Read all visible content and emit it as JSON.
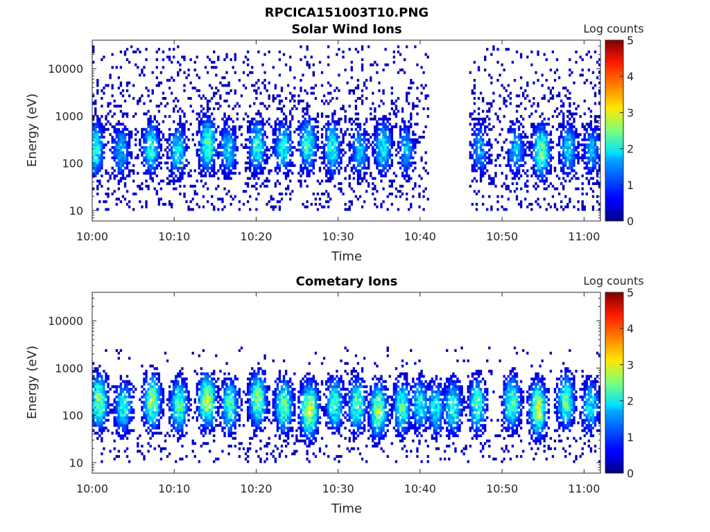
{
  "figure_title": "RPCICA151003T10.PNG",
  "chart_data": [
    {
      "type": "heatmap",
      "title": "Solar Wind Ions",
      "xlabel": "Time",
      "ylabel": "Energy (eV)",
      "x_ticks": [
        "10:00",
        "10:10",
        "10:20",
        "10:30",
        "10:40",
        "10:50",
        "11:00"
      ],
      "xlim": [
        "10:00",
        "11:02"
      ],
      "y_scale": "log",
      "y_ticks": [
        10,
        100,
        1000,
        10000
      ],
      "y_tick_labels": [
        "10",
        "100",
        "1000",
        "10000"
      ],
      "ylim": [
        6,
        40000
      ],
      "colorbar": {
        "label": "Log counts",
        "range": [
          0,
          5
        ],
        "ticks": [
          "0",
          "1",
          "2",
          "3",
          "4",
          "5"
        ],
        "colormap": "jet"
      },
      "data_gap": [
        "10:41",
        "10:46"
      ],
      "sweep_times_min": [
        0.3,
        3.5,
        7.2,
        10.4,
        14.1,
        16.6,
        20.1,
        23.3,
        26.3,
        29.3,
        32.6,
        35.5,
        38.3,
        47.3,
        51.7,
        54.8,
        58.1,
        61.0
      ],
      "sweep_peak_log_counts": [
        2.1,
        1.6,
        2.0,
        1.8,
        2.3,
        1.7,
        2.0,
        1.9,
        2.1,
        2.0,
        1.6,
        1.9,
        1.5,
        1.5,
        1.6,
        2.4,
        1.7,
        1.5
      ],
      "sweep_peak_energy_eV": [
        200,
        180,
        210,
        190,
        250,
        200,
        230,
        220,
        260,
        210,
        180,
        220,
        190,
        200,
        190,
        180,
        200,
        190
      ],
      "background_energy_range_eV": [
        10,
        30000
      ],
      "background_log_counts": 0.1
    },
    {
      "type": "heatmap",
      "title": "Cometary Ions",
      "xlabel": "Time",
      "ylabel": "Energy (eV)",
      "x_ticks": [
        "10:00",
        "10:10",
        "10:20",
        "10:30",
        "10:40",
        "10:50",
        "11:00"
      ],
      "xlim": [
        "10:00",
        "11:02"
      ],
      "y_scale": "log",
      "y_ticks": [
        10,
        100,
        1000,
        10000
      ],
      "y_tick_labels": [
        "10",
        "100",
        "1000",
        "10000"
      ],
      "ylim": [
        6,
        40000
      ],
      "colorbar": {
        "label": "Log counts",
        "range": [
          0,
          5
        ],
        "ticks": [
          "0",
          "1",
          "2",
          "3",
          "4",
          "5"
        ],
        "colormap": "jet"
      },
      "data_gap": null,
      "sweep_times_min": [
        0.8,
        3.8,
        7.3,
        10.6,
        14.0,
        16.8,
        20.2,
        23.4,
        26.5,
        29.6,
        32.3,
        34.9,
        37.8,
        40.0,
        41.9,
        44.0,
        47.0,
        51.2,
        54.4,
        57.8,
        60.8
      ],
      "sweep_peak_log_counts": [
        2.5,
        2.0,
        2.6,
        2.3,
        2.8,
        2.2,
        2.6,
        2.4,
        2.9,
        2.2,
        2.3,
        2.6,
        2.2,
        1.9,
        1.9,
        2.1,
        2.2,
        2.3,
        2.8,
        2.3,
        1.8
      ],
      "sweep_peak_energy_eV": [
        200,
        150,
        200,
        160,
        200,
        160,
        220,
        160,
        130,
        180,
        170,
        130,
        150,
        170,
        140,
        150,
        170,
        190,
        140,
        200,
        160
      ],
      "background_energy_range_eV": [
        10,
        3000
      ],
      "background_log_counts": 0.05
    }
  ]
}
